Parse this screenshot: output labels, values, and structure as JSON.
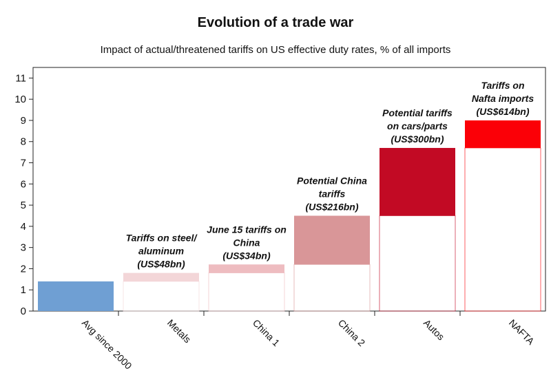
{
  "chart_data": {
    "type": "bar",
    "title": "Evolution of a trade war",
    "subtitle": "Impact of actual/threatened tariffs on US effective duty rates, % of all imports",
    "xlabel": "",
    "ylabel": "",
    "ylim": [
      0,
      11.5
    ],
    "yticks": [
      0,
      1,
      2,
      3,
      4,
      5,
      6,
      7,
      8,
      9,
      10,
      11
    ],
    "grid": false,
    "categories": [
      "Avg since 2000",
      "Metals",
      "China 1",
      "China 2",
      "Autos",
      "NAFTA"
    ],
    "bars": [
      {
        "category": "Avg since 2000",
        "start": 0,
        "end": 1.4,
        "color": "#6f9fd3",
        "annotation": []
      },
      {
        "category": "Metals",
        "start": 1.4,
        "end": 1.8,
        "color": "#f3d6d8",
        "annotation": [
          "Tariffs on steel/",
          "aluminum",
          "(US$48bn)"
        ]
      },
      {
        "category": "China 1",
        "start": 1.8,
        "end": 2.2,
        "color": "#eebcc0",
        "annotation": [
          "June 15 tariffs on",
          "China",
          "(US$34bn)"
        ]
      },
      {
        "category": "China 2",
        "start": 2.2,
        "end": 4.5,
        "color": "#d99698",
        "annotation": [
          "Potential China",
          "tariffs",
          "(US$216bn)"
        ]
      },
      {
        "category": "Autos",
        "start": 4.5,
        "end": 7.7,
        "color": "#c20a24",
        "annotation": [
          "Potential tariffs",
          "on cars/parts",
          "(US$300bn)"
        ]
      },
      {
        "category": "NAFTA",
        "start": 7.7,
        "end": 9.0,
        "color": "#fb0007",
        "annotation": [
          "Tariffs on",
          "Nafta imports",
          "(US$614bn)"
        ]
      }
    ]
  }
}
